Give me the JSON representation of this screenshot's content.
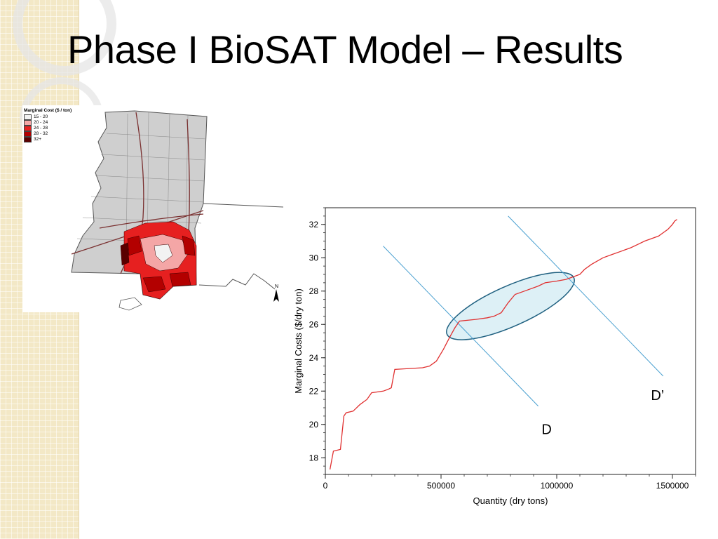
{
  "slide": {
    "title": "Phase I BioSAT Model – Results"
  },
  "map": {
    "legend_title": "Marginal Cost ($ / ton)",
    "legend_items": [
      {
        "label": "15 - 20",
        "color": "#f2f2f2"
      },
      {
        "label": "20 - 24",
        "color": "#f4a6a6"
      },
      {
        "label": "24 - 28",
        "color": "#e62020"
      },
      {
        "label": "28 - 32",
        "color": "#b30000"
      },
      {
        "label": "32+",
        "color": "#5a0000"
      }
    ],
    "north_label": "N"
  },
  "chart_data": {
    "type": "line",
    "xlabel": "Quantity (dry tons)",
    "ylabel": "Marginal Costs ($/dry ton)",
    "xlim": [
      0,
      1600000
    ],
    "ylim": [
      17,
      33
    ],
    "xticks": [
      0,
      500000,
      1000000,
      1500000
    ],
    "yticks": [
      18,
      20,
      22,
      24,
      26,
      28,
      30,
      32
    ],
    "grid": false,
    "series": [
      {
        "color": "#e03030",
        "x": [
          20000,
          35000,
          65000,
          80000,
          90000,
          120000,
          150000,
          180000,
          200000,
          250000,
          270000,
          285000,
          300000,
          420000,
          450000,
          480000,
          510000,
          540000,
          560000,
          580000,
          650000,
          700000,
          730000,
          760000,
          790000,
          820000,
          860000,
          920000,
          950000,
          1000000,
          1040000,
          1060000,
          1100000,
          1120000,
          1150000,
          1200000,
          1240000,
          1280000,
          1320000,
          1350000,
          1380000,
          1400000,
          1440000,
          1460000,
          1480000,
          1500000,
          1510000,
          1520000
        ],
        "y": [
          17.3,
          18.4,
          18.5,
          20.5,
          20.7,
          20.8,
          21.2,
          21.5,
          21.9,
          22.0,
          22.1,
          22.2,
          23.3,
          23.4,
          23.5,
          23.8,
          24.5,
          25.3,
          25.8,
          26.2,
          26.3,
          26.4,
          26.5,
          26.7,
          27.3,
          27.8,
          28.0,
          28.3,
          28.5,
          28.6,
          28.7,
          28.8,
          29.0,
          29.3,
          29.6,
          30.0,
          30.2,
          30.4,
          30.6,
          30.8,
          31.0,
          31.1,
          31.3,
          31.5,
          31.7,
          32.0,
          32.2,
          32.3
        ]
      }
    ],
    "demand_lines": [
      {
        "label": "D",
        "x1": 250000,
        "y1": 30.7,
        "x2": 920000,
        "y2": 21.1
      },
      {
        "label": "D’",
        "x1": 790000,
        "y1": 32.5,
        "x2": 1460000,
        "y2": 22.9
      }
    ],
    "highlight_ellipse": {
      "cx": 800000,
      "cy": 27.1,
      "rx": 300000,
      "ry": 1.2
    },
    "colors": {
      "demand": "#4aa0d0",
      "ellipse_stroke": "#1f6080",
      "ellipse_fill": "#d4ecf4"
    }
  }
}
